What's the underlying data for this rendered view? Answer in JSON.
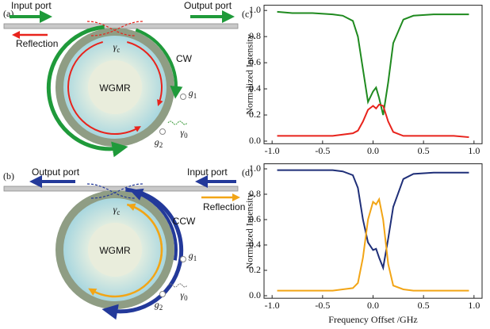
{
  "panels": [
    {
      "label": "(a)",
      "input": "Input port",
      "output": "Output port",
      "reflection": "Reflection",
      "coupling": {
        "symbol": "γ",
        "sub": "c"
      },
      "direction": "CW",
      "resonator": "WGMR",
      "g1": {
        "symbol": "g",
        "sub": "1"
      },
      "g2": {
        "symbol": "g",
        "sub": "2"
      },
      "loss": {
        "symbol": "γ",
        "sub": "0"
      }
    },
    {
      "label": "(b)",
      "input": "Input port",
      "output": "Output port",
      "reflection": "Reflection",
      "coupling": {
        "symbol": "γ",
        "sub": "c"
      },
      "direction": "CCW",
      "resonator": "WGMR",
      "g1": {
        "symbol": "g",
        "sub": "1"
      },
      "g2": {
        "symbol": "g",
        "sub": "2"
      },
      "loss": {
        "symbol": "γ",
        "sub": "0"
      }
    }
  ],
  "chart_data": [
    {
      "type": "line",
      "panel_label": "(c)",
      "y_label": "Normalized Intensity",
      "x": [
        -0.95,
        -0.8,
        -0.6,
        -0.4,
        -0.3,
        -0.2,
        -0.15,
        -0.1,
        -0.05,
        0,
        0.03,
        0.06,
        0.1,
        0.15,
        0.2,
        0.3,
        0.4,
        0.6,
        0.8,
        0.95
      ],
      "series": [
        {
          "color": "#1f8a1f",
          "values": [
            0.99,
            0.98,
            0.98,
            0.97,
            0.96,
            0.92,
            0.8,
            0.55,
            0.3,
            0.38,
            0.41,
            0.33,
            0.2,
            0.45,
            0.75,
            0.93,
            0.96,
            0.97,
            0.97,
            0.97
          ]
        },
        {
          "color": "#e8231c",
          "values": [
            0.04,
            0.04,
            0.04,
            0.04,
            0.05,
            0.06,
            0.08,
            0.15,
            0.24,
            0.27,
            0.25,
            0.28,
            0.27,
            0.15,
            0.07,
            0.04,
            0.04,
            0.04,
            0.04,
            0.03
          ]
        }
      ],
      "xlim": [
        -1.08,
        1.08
      ],
      "ylim": [
        -0.02,
        1.04
      ],
      "xticks": [
        {
          "value": -1,
          "label": "-1.0"
        },
        {
          "value": -0.5,
          "label": "-0.5"
        },
        {
          "value": 0,
          "label": "0.0"
        },
        {
          "value": 0.5,
          "label": "0.5"
        },
        {
          "value": 1,
          "label": "1.0"
        }
      ],
      "yticks": [
        {
          "value": 0,
          "label": "0.0"
        },
        {
          "value": 0.2,
          "label": "0.2"
        },
        {
          "value": 0.4,
          "label": "0.4"
        },
        {
          "value": 0.6,
          "label": "0.6"
        },
        {
          "value": 0.8,
          "label": "0.8"
        },
        {
          "value": 1,
          "label": "1.0"
        }
      ]
    },
    {
      "type": "line",
      "panel_label": "(d)",
      "y_label": "Normlized Intensity",
      "x_label": "Frequency Offset /GHz",
      "x": [
        -0.95,
        -0.8,
        -0.6,
        -0.4,
        -0.3,
        -0.2,
        -0.15,
        -0.1,
        -0.05,
        0,
        0.03,
        0.06,
        0.1,
        0.15,
        0.2,
        0.3,
        0.4,
        0.6,
        0.8,
        0.95
      ],
      "series": [
        {
          "color": "#1f2f78",
          "values": [
            0.99,
            0.99,
            0.99,
            0.99,
            0.98,
            0.95,
            0.85,
            0.6,
            0.42,
            0.36,
            0.37,
            0.3,
            0.22,
            0.45,
            0.7,
            0.92,
            0.96,
            0.97,
            0.97,
            0.97
          ]
        },
        {
          "color": "#f2a516",
          "values": [
            0.04,
            0.04,
            0.04,
            0.04,
            0.05,
            0.06,
            0.1,
            0.3,
            0.6,
            0.74,
            0.72,
            0.76,
            0.6,
            0.25,
            0.08,
            0.05,
            0.04,
            0.04,
            0.04,
            0.04
          ]
        }
      ],
      "xlim": [
        -1.08,
        1.08
      ],
      "ylim": [
        -0.02,
        1.04
      ],
      "xticks": [
        {
          "value": -1,
          "label": "-1.0"
        },
        {
          "value": -0.5,
          "label": "-0.5"
        },
        {
          "value": 0,
          "label": "0.0"
        },
        {
          "value": 0.5,
          "label": "0.5"
        },
        {
          "value": 1,
          "label": "1.0"
        }
      ],
      "yticks": [
        {
          "value": 0,
          "label": "0.0"
        },
        {
          "value": 0.2,
          "label": "0.2"
        },
        {
          "value": 0.4,
          "label": "0.4"
        },
        {
          "value": 0.6,
          "label": "0.6"
        },
        {
          "value": 0.8,
          "label": "0.8"
        },
        {
          "value": 1,
          "label": "1.0"
        }
      ]
    }
  ]
}
